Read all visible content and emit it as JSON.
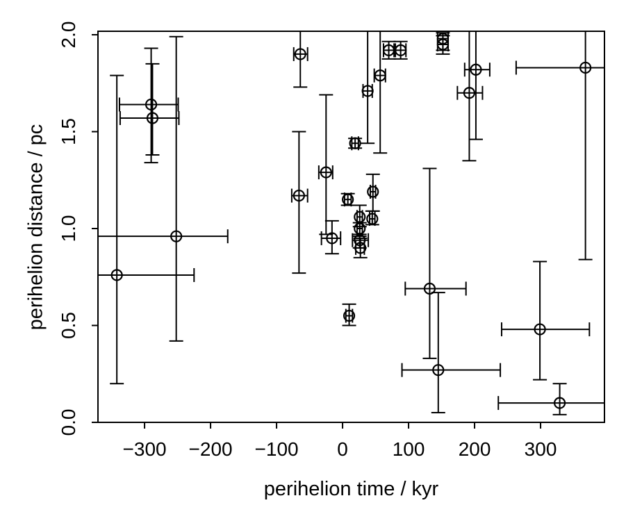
{
  "chart_data": {
    "type": "scatter",
    "title": "",
    "xlabel": "perihelion time / kyr",
    "ylabel": "perihelion distance / pc",
    "xlim": [
      -370.6,
      396.8
    ],
    "ylim": [
      0,
      2.018
    ],
    "grid": false,
    "legend": "none",
    "marker": "open-circle",
    "stroke_color": "#000000",
    "background_color": "#ffffff",
    "x_ticks": [
      -300,
      -200,
      -100,
      0,
      100,
      200,
      300
    ],
    "x_tick_labels": [
      "−300",
      "−200",
      "−100",
      "0",
      "100",
      "200",
      "300"
    ],
    "y_ticks": [
      0.0,
      0.5,
      1.0,
      1.5,
      2.0
    ],
    "y_tick_labels": [
      "0.0",
      "0.5",
      "1.0",
      "1.5",
      "2.0"
    ],
    "points": [
      {
        "t": -342,
        "d": 0.76,
        "xlo": -480,
        "xhi": -225,
        "ylo": 0.2,
        "yhi": 1.79
      },
      {
        "t": -252,
        "d": 0.96,
        "xlo": -430,
        "xhi": -174,
        "ylo": 0.42,
        "yhi": 1.99
      },
      {
        "t": -290,
        "d": 1.64,
        "xlo": -338,
        "xhi": -249,
        "ylo": 1.34,
        "yhi": 1.93
      },
      {
        "t": -288,
        "d": 1.57,
        "xlo": -337,
        "xhi": -248,
        "ylo": 1.38,
        "yhi": 1.85
      },
      {
        "t": -64,
        "d": 1.9,
        "xlo": -74,
        "xhi": -53,
        "ylo": 1.73,
        "yhi": 2.1
      },
      {
        "t": -66,
        "d": 1.17,
        "xlo": -77,
        "xhi": -53,
        "ylo": 0.77,
        "yhi": 1.5
      },
      {
        "t": -25,
        "d": 1.29,
        "xlo": -36,
        "xhi": -15,
        "ylo": 0.97,
        "yhi": 1.69
      },
      {
        "t": -16,
        "d": 0.95,
        "xlo": -32,
        "xhi": -3,
        "ylo": 0.87,
        "yhi": 1.04
      },
      {
        "t": 8,
        "d": 1.15,
        "xlo": 3,
        "xhi": 13,
        "ylo": 1.12,
        "yhi": 1.18
      },
      {
        "t": 10,
        "d": 0.55,
        "xlo": 5,
        "xhi": 15,
        "ylo": 0.5,
        "yhi": 0.61
      },
      {
        "t": 19,
        "d": 1.44,
        "xlo": 14,
        "xhi": 24,
        "ylo": 1.415,
        "yhi": 1.465
      },
      {
        "t": 26,
        "d": 1.06,
        "xlo": 22,
        "xhi": 30,
        "ylo": 1.01,
        "yhi": 1.12
      },
      {
        "t": 26,
        "d": 1.0,
        "xlo": 22,
        "xhi": 30,
        "ylo": 0.96,
        "yhi": 1.03
      },
      {
        "t": 26,
        "d": 0.94,
        "xlo": 15,
        "xhi": 39,
        "ylo": 0.9,
        "yhi": 0.97
      },
      {
        "t": 27,
        "d": 0.9,
        "xlo": 20,
        "xhi": 33,
        "ylo": 0.85,
        "yhi": 0.95
      },
      {
        "t": 46,
        "d": 1.19,
        "xlo": 42,
        "xhi": 50,
        "ylo": 1.09,
        "yhi": 1.28
      },
      {
        "t": 45,
        "d": 1.05,
        "xlo": 41,
        "xhi": 49,
        "ylo": 1.02,
        "yhi": 1.09
      },
      {
        "t": 38,
        "d": 1.71,
        "xlo": 31,
        "xhi": 45,
        "ylo": 1.44,
        "yhi": 2.1
      },
      {
        "t": 57,
        "d": 1.79,
        "xlo": 48,
        "xhi": 65,
        "ylo": 1.39,
        "yhi": 2.1
      },
      {
        "t": 70,
        "d": 1.92,
        "xlo": 62,
        "xhi": 78,
        "ylo": 1.875,
        "yhi": 1.965
      },
      {
        "t": 88,
        "d": 1.92,
        "xlo": 80,
        "xhi": 96,
        "ylo": 1.875,
        "yhi": 1.965
      },
      {
        "t": 152,
        "d": 1.98,
        "xlo": 144,
        "xhi": 160,
        "ylo": 1.92,
        "yhi": 2.01
      },
      {
        "t": 152,
        "d": 1.95,
        "xlo": 144,
        "xhi": 160,
        "ylo": 1.9,
        "yhi": 1.995
      },
      {
        "t": 132,
        "d": 0.69,
        "xlo": 95,
        "xhi": 187,
        "ylo": 0.33,
        "yhi": 1.31
      },
      {
        "t": 145,
        "d": 0.27,
        "xlo": 90,
        "xhi": 239,
        "ylo": 0.05,
        "yhi": 0.67
      },
      {
        "t": 202,
        "d": 1.82,
        "xlo": 185,
        "xhi": 223,
        "ylo": 1.46,
        "yhi": 2.1
      },
      {
        "t": 192,
        "d": 1.7,
        "xlo": 174,
        "xhi": 212,
        "ylo": 1.35,
        "yhi": 2.1
      },
      {
        "t": 299,
        "d": 0.48,
        "xlo": 241,
        "xhi": 374,
        "ylo": 0.22,
        "yhi": 0.83
      },
      {
        "t": 329,
        "d": 0.1,
        "xlo": 236,
        "xhi": 430,
        "ylo": 0.04,
        "yhi": 0.2
      },
      {
        "t": 368,
        "d": 1.83,
        "xlo": 263,
        "xhi": 430,
        "ylo": 0.84,
        "yhi": 2.1
      }
    ]
  }
}
